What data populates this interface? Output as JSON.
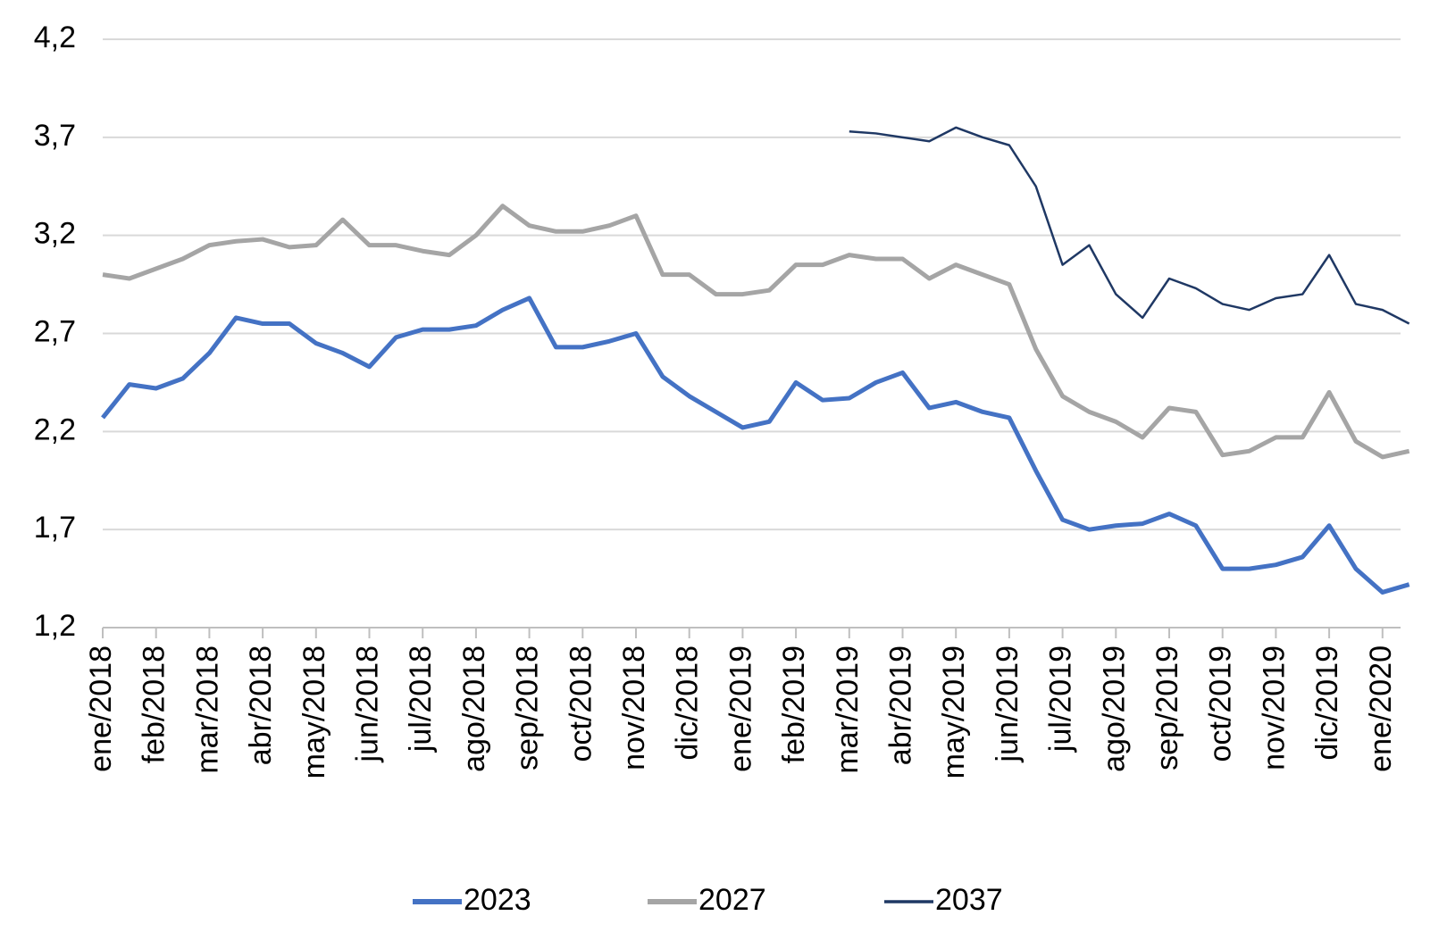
{
  "chart_data": {
    "type": "line",
    "categories": [
      "ene/2018",
      null,
      "feb/2018",
      null,
      "mar/2018",
      null,
      "abr/2018",
      null,
      "may/2018",
      null,
      "jun/2018",
      null,
      "jul/2018",
      null,
      "ago/2018",
      null,
      "sep/2018",
      null,
      "oct/2018",
      null,
      "nov/2018",
      null,
      "dic/2018",
      null,
      "ene/2019",
      null,
      "feb/2019",
      null,
      "mar/2019",
      null,
      "abr/2019",
      null,
      "may/2019",
      null,
      "jun/2019",
      null,
      "jul/2019",
      null,
      "ago/2019",
      null,
      "sep/2019",
      null,
      "oct/2019",
      null,
      "nov/2019",
      null,
      "dic/2019",
      null,
      "ene/2020",
      null
    ],
    "series": [
      {
        "name": "2023",
        "color": "#4472c4",
        "values": [
          2.27,
          2.44,
          2.42,
          2.47,
          2.6,
          2.78,
          2.75,
          2.75,
          2.65,
          2.6,
          2.53,
          2.68,
          2.72,
          2.72,
          2.74,
          2.82,
          2.88,
          2.63,
          2.63,
          2.66,
          2.7,
          2.48,
          2.38,
          2.3,
          2.22,
          2.25,
          2.45,
          2.36,
          2.37,
          2.45,
          2.5,
          2.32,
          2.35,
          2.3,
          2.27,
          2.0,
          1.75,
          1.7,
          1.72,
          1.73,
          1.78,
          1.72,
          1.5,
          1.5,
          1.52,
          1.56,
          1.72,
          1.5,
          1.38,
          1.42
        ]
      },
      {
        "name": "2027",
        "color": "#a5a5a5",
        "values": [
          3.0,
          2.98,
          3.03,
          3.08,
          3.15,
          3.17,
          3.18,
          3.14,
          3.15,
          3.28,
          3.15,
          3.15,
          3.12,
          3.1,
          3.2,
          3.35,
          3.25,
          3.22,
          3.22,
          3.25,
          3.3,
          3.0,
          3.0,
          2.9,
          2.9,
          2.92,
          3.05,
          3.05,
          3.1,
          3.08,
          3.08,
          2.98,
          3.05,
          3.0,
          2.95,
          2.62,
          2.38,
          2.3,
          2.25,
          2.17,
          2.32,
          2.3,
          2.08,
          2.1,
          2.17,
          2.17,
          2.4,
          2.15,
          2.07,
          2.1
        ]
      },
      {
        "name": "2037",
        "color": "#1f3864",
        "values": [
          null,
          null,
          null,
          null,
          null,
          null,
          null,
          null,
          null,
          null,
          null,
          null,
          null,
          null,
          null,
          null,
          null,
          null,
          null,
          null,
          null,
          null,
          null,
          null,
          null,
          null,
          null,
          null,
          3.73,
          3.72,
          3.7,
          3.68,
          3.75,
          3.7,
          3.66,
          3.45,
          3.05,
          3.15,
          2.9,
          2.78,
          2.98,
          2.93,
          2.85,
          2.82,
          2.88,
          2.9,
          3.1,
          2.85,
          2.82,
          2.75
        ]
      }
    ],
    "ylim": [
      1.2,
      4.2
    ],
    "yticks": [
      {
        "value": 1.2,
        "label": "1,2"
      },
      {
        "value": 1.7,
        "label": "1,7"
      },
      {
        "value": 2.2,
        "label": "2,2"
      },
      {
        "value": 2.7,
        "label": "2,7"
      },
      {
        "value": 3.2,
        "label": "3,2"
      },
      {
        "value": 3.7,
        "label": "3,7"
      },
      {
        "value": 4.2,
        "label": "4,2"
      }
    ],
    "grid": true,
    "legend": "bottom"
  }
}
